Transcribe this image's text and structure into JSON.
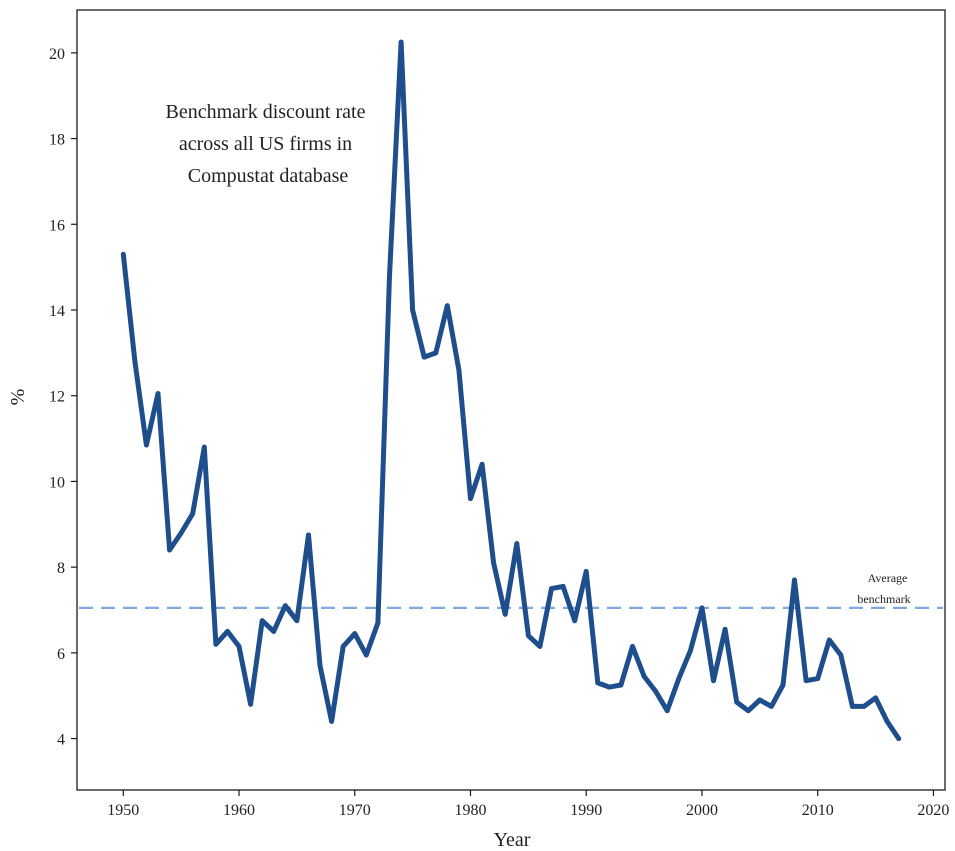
{
  "chart_data": {
    "type": "line",
    "title": "",
    "xlabel": "Year",
    "ylabel": "%",
    "xlim": [
      1946,
      2021
    ],
    "ylim": [
      2.8,
      21.0
    ],
    "x_ticks": [
      1950,
      1960,
      1970,
      1980,
      1990,
      2000,
      2010,
      2020
    ],
    "y_ticks": [
      4,
      6,
      8,
      10,
      12,
      14,
      16,
      18,
      20
    ],
    "grid": false,
    "annotation": [
      "Benchmark discount rate",
      "across all US firms in",
      "Compustat database"
    ],
    "reference_line": {
      "y": 7.05,
      "style": "dashed",
      "label": [
        "Average",
        "benchmark"
      ]
    },
    "colors": {
      "series": "#1f4e8c",
      "reference": "#7fa8dc"
    },
    "series": [
      {
        "x": [
          1950,
          1951,
          1952,
          1953,
          1954,
          1955,
          1956,
          1957,
          1958,
          1959,
          1960,
          1961,
          1962,
          1963,
          1964,
          1965,
          1966,
          1967,
          1968,
          1969,
          1970,
          1971,
          1972,
          1973,
          1974,
          1975,
          1976,
          1977,
          1978,
          1979,
          1980,
          1981,
          1982,
          1983,
          1984,
          1985,
          1986,
          1987,
          1988,
          1989,
          1990,
          1991,
          1992,
          1993,
          1994,
          1995,
          1996,
          1997,
          1998,
          1999,
          2000,
          2001,
          2002,
          2003,
          2004,
          2005,
          2006,
          2007,
          2008,
          2009,
          2010,
          2011,
          2012,
          2013,
          2014,
          2015,
          2016,
          2017
        ],
        "y": [
          15.3,
          12.8,
          10.85,
          12.05,
          8.4,
          8.8,
          9.25,
          10.8,
          6.2,
          6.5,
          6.15,
          4.8,
          6.75,
          6.5,
          7.1,
          6.75,
          8.75,
          5.7,
          4.4,
          6.15,
          6.45,
          5.95,
          6.7,
          14.8,
          20.25,
          14.0,
          12.9,
          13.0,
          14.1,
          12.6,
          9.6,
          10.4,
          8.1,
          6.9,
          8.55,
          6.4,
          6.15,
          7.5,
          7.55,
          6.75,
          7.9,
          5.3,
          5.2,
          5.25,
          6.15,
          5.45,
          5.1,
          4.65,
          5.4,
          6.05,
          7.05,
          5.35,
          6.55,
          4.85,
          4.65,
          4.9,
          4.75,
          5.25,
          7.7,
          5.35,
          5.4,
          6.3,
          5.95,
          4.75,
          4.75,
          4.95,
          4.4,
          4.0
        ]
      }
    ]
  }
}
